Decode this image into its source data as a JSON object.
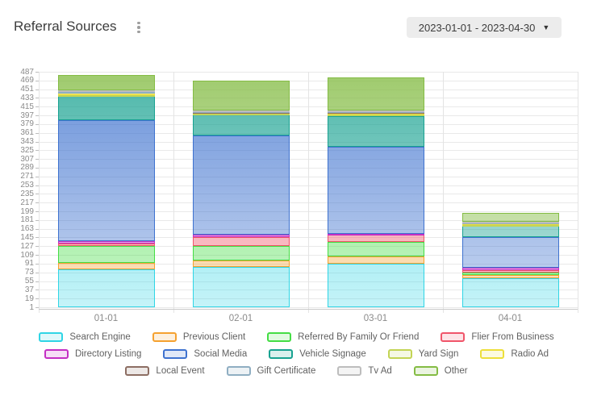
{
  "header": {
    "title": "Referral Sources",
    "menu_icon": "kebab-menu",
    "date_range": {
      "label": "2023-01-01 - 2023-04-30",
      "caret": "▼"
    }
  },
  "chart_data": {
    "type": "bar",
    "subtype": "stacked-vertical",
    "title": "Referral Sources",
    "xlabel": "",
    "ylabel": "",
    "grid": true,
    "legend_position": "bottom",
    "categories": [
      "01-01",
      "02-01",
      "03-01",
      "04-01"
    ],
    "y_axis": {
      "min": 1,
      "max": 487,
      "tick_step": 18,
      "ticks": [
        1,
        19,
        37,
        55,
        73,
        91,
        109,
        127,
        145,
        163,
        181,
        199,
        217,
        235,
        253,
        271,
        289,
        307,
        325,
        343,
        361,
        379,
        397,
        415,
        433,
        451,
        469,
        487
      ]
    },
    "series": [
      {
        "name": "Search Engine",
        "color": "#2FD5E5",
        "values": [
          78,
          83,
          90,
          60
        ]
      },
      {
        "name": "Previous Client",
        "color": "#F5A12F",
        "values": [
          14,
          14,
          15,
          7
        ]
      },
      {
        "name": "Referred By Family Or Friend",
        "color": "#44DD44",
        "values": [
          35,
          30,
          30,
          5
        ]
      },
      {
        "name": "Flier From Business",
        "color": "#F0556A",
        "values": [
          5,
          17,
          15,
          4
        ]
      },
      {
        "name": "Directory Listing",
        "color": "#C42FC4",
        "values": [
          4,
          5,
          2,
          5
        ]
      },
      {
        "name": "Social Media",
        "color": "#3E72CF",
        "values": [
          250,
          205,
          180,
          64
        ]
      },
      {
        "name": "Vehicle Signage",
        "color": "#18A291",
        "values": [
          50,
          43,
          63,
          24
        ]
      },
      {
        "name": "Yard Sign",
        "color": "#C3D455",
        "values": [
          2,
          2,
          3,
          1
        ]
      },
      {
        "name": "Radio Ad",
        "color": "#EDDF3A",
        "values": [
          4,
          3,
          3,
          3
        ]
      },
      {
        "name": "Local Event",
        "color": "#8D6E63",
        "values": [
          2,
          1,
          2,
          1
        ]
      },
      {
        "name": "Gift Certificate",
        "color": "#8FAEC2",
        "values": [
          1,
          1,
          1,
          1
        ]
      },
      {
        "name": "Tv Ad",
        "color": "#BDBDBD",
        "values": [
          2,
          2,
          2,
          1
        ]
      },
      {
        "name": "Other",
        "color": "#84BC44",
        "values": [
          33,
          62,
          68,
          19
        ]
      }
    ],
    "totals": [
      480,
      468,
      474,
      195
    ],
    "legend_rows": [
      [
        0,
        1,
        2,
        3
      ],
      [
        4,
        5,
        6,
        7,
        8
      ],
      [
        9,
        10,
        11,
        12
      ]
    ]
  }
}
